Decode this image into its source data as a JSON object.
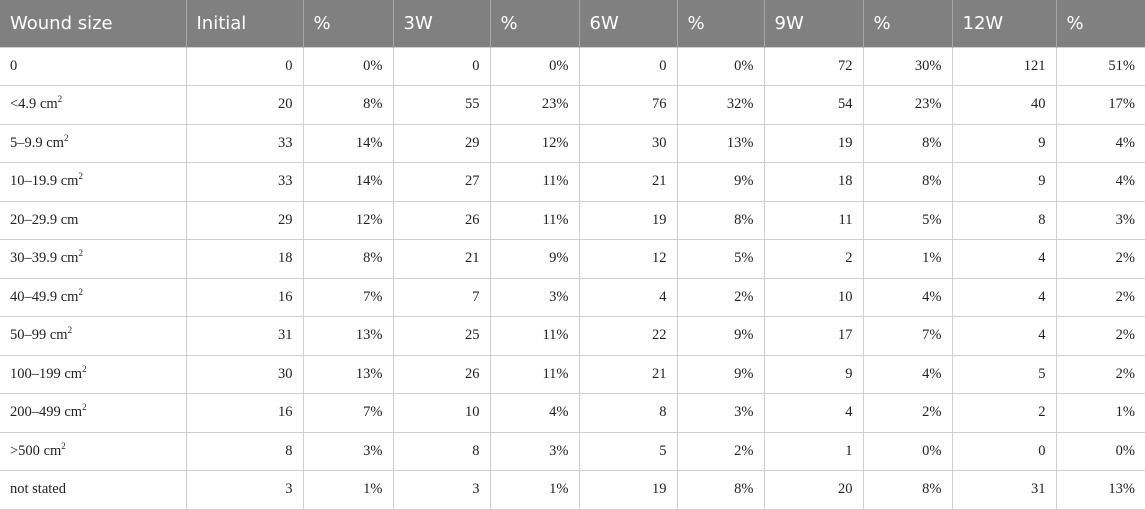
{
  "table": {
    "headers": [
      "Wound size",
      "Initial",
      "%",
      "3W",
      "%",
      "6W",
      "%",
      "9W",
      "%",
      "12W",
      "%"
    ],
    "rows": [
      {
        "label": "0",
        "unit": "",
        "sup": "",
        "cells": [
          "0",
          "0%",
          "0",
          "0%",
          "0",
          "0%",
          "72",
          "30%",
          "121",
          "51%"
        ]
      },
      {
        "label": "<4.9",
        "unit": "cm",
        "sup": "2",
        "cells": [
          "20",
          "8%",
          "55",
          "23%",
          "76",
          "32%",
          "54",
          "23%",
          "40",
          "17%"
        ]
      },
      {
        "label": "5–9.9",
        "unit": "cm",
        "sup": "2",
        "cells": [
          "33",
          "14%",
          "29",
          "12%",
          "30",
          "13%",
          "19",
          "8%",
          "9",
          "4%"
        ]
      },
      {
        "label": "10–19.9",
        "unit": "cm",
        "sup": "2",
        "cells": [
          "33",
          "14%",
          "27",
          "11%",
          "21",
          "9%",
          "18",
          "8%",
          "9",
          "4%"
        ]
      },
      {
        "label": "20–29.9",
        "unit": "cm",
        "sup": "",
        "cells": [
          "29",
          "12%",
          "26",
          "11%",
          "19",
          "8%",
          "11",
          "5%",
          "8",
          "3%"
        ]
      },
      {
        "label": "30–39.9",
        "unit": "cm",
        "sup": "2",
        "cells": [
          "18",
          "8%",
          "21",
          "9%",
          "12",
          "5%",
          "2",
          "1%",
          "4",
          "2%"
        ]
      },
      {
        "label": "40–49.9",
        "unit": "cm",
        "sup": "2",
        "cells": [
          "16",
          "7%",
          "7",
          "3%",
          "4",
          "2%",
          "10",
          "4%",
          "4",
          "2%"
        ]
      },
      {
        "label": "50–99",
        "unit": "cm",
        "sup": "2",
        "cells": [
          "31",
          "13%",
          "25",
          "11%",
          "22",
          "9%",
          "17",
          "7%",
          "4",
          "2%"
        ]
      },
      {
        "label": "100–199",
        "unit": "cm",
        "sup": "2",
        "cells": [
          "30",
          "13%",
          "26",
          "11%",
          "21",
          "9%",
          "9",
          "4%",
          "5",
          "2%"
        ]
      },
      {
        "label": "200–499",
        "unit": "cm",
        "sup": "2",
        "cells": [
          "16",
          "7%",
          "10",
          "4%",
          "8",
          "3%",
          "4",
          "2%",
          "2",
          "1%"
        ]
      },
      {
        "label": ">500",
        "unit": "cm",
        "sup": "2",
        "cells": [
          "8",
          "3%",
          "8",
          "3%",
          "5",
          "2%",
          "1",
          "0%",
          "0",
          "0%"
        ]
      },
      {
        "label": "not stated",
        "unit": "",
        "sup": "",
        "cells": [
          "3",
          "1%",
          "3",
          "1%",
          "19",
          "8%",
          "20",
          "8%",
          "31",
          "13%"
        ]
      }
    ]
  }
}
